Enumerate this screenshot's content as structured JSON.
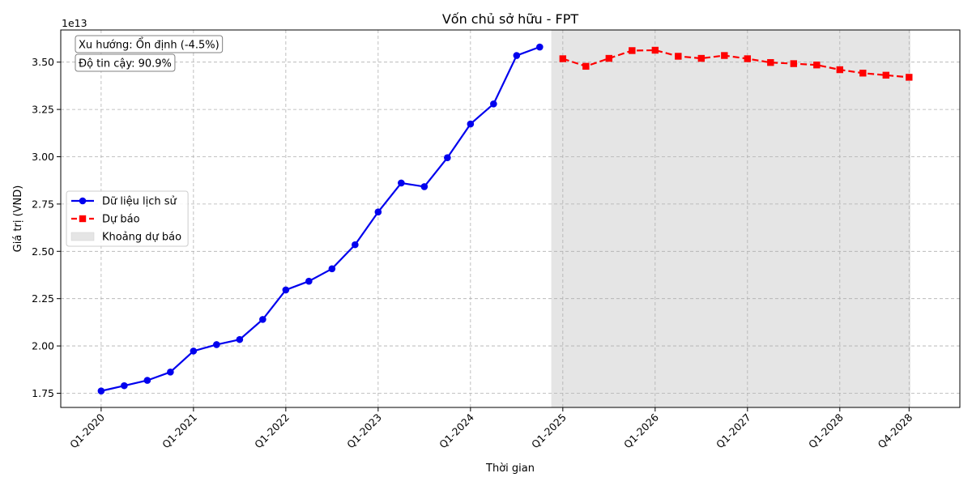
{
  "chart_data": {
    "type": "line",
    "title": "Vốn chủ sở hữu - FPT",
    "xlabel": "Thời gian",
    "ylabel": "Giá trị (VND)",
    "y_offset_label": "1e13",
    "x_tick_labels": [
      "Q1-2020",
      "Q1-2021",
      "Q1-2022",
      "Q1-2023",
      "Q1-2024",
      "Q1-2025",
      "Q1-2026",
      "Q1-2027",
      "Q1-2028",
      "Q4-2028"
    ],
    "y_tick_labels": [
      "1.75",
      "2.00",
      "2.25",
      "2.50",
      "2.75",
      "3.00",
      "3.25",
      "3.50"
    ],
    "y_ticks": [
      1.75,
      2.0,
      2.25,
      2.5,
      2.75,
      3.0,
      3.25,
      3.5
    ],
    "ylim": [
      1.675,
      3.67
    ],
    "grid": true,
    "legend_position": "center-left",
    "series": [
      {
        "name": "Dữ liệu lịch sử",
        "color": "#0000ee",
        "marker": "circle",
        "x": [
          "Q1-2020",
          "Q2-2020",
          "Q3-2020",
          "Q4-2020",
          "Q1-2021",
          "Q2-2021",
          "Q3-2021",
          "Q4-2021",
          "Q1-2022",
          "Q2-2022",
          "Q3-2022",
          "Q4-2022",
          "Q1-2023",
          "Q2-2023",
          "Q3-2023",
          "Q4-2023",
          "Q1-2024",
          "Q2-2024",
          "Q3-2024",
          "Q4-2024"
        ],
        "values": [
          1.762,
          1.79,
          1.818,
          1.862,
          1.973,
          2.007,
          2.034,
          2.14,
          2.296,
          2.342,
          2.408,
          2.535,
          2.708,
          2.861,
          2.842,
          2.995,
          3.173,
          3.279,
          3.535,
          3.58
        ]
      },
      {
        "name": "Dự báo",
        "color": "#ff0000",
        "marker": "square",
        "x": [
          "Q1-2025",
          "Q2-2025",
          "Q3-2025",
          "Q4-2025",
          "Q1-2026",
          "Q2-2026",
          "Q3-2026",
          "Q4-2026",
          "Q1-2027",
          "Q2-2027",
          "Q3-2027",
          "Q4-2027",
          "Q1-2028",
          "Q2-2028",
          "Q3-2028",
          "Q4-2028"
        ],
        "values": [
          3.518,
          3.478,
          3.52,
          3.561,
          3.563,
          3.531,
          3.52,
          3.535,
          3.518,
          3.498,
          3.492,
          3.485,
          3.46,
          3.442,
          3.431,
          3.42
        ]
      }
    ],
    "forecast_region": {
      "name": "Khoảng dự báo",
      "color": "#e5e5e5",
      "start": "Q4-2024",
      "end": "Q4-2028"
    },
    "annotations": [
      "Xu hướng: Ổn định (-4.5%)",
      "Độ tin cậy: 90.9%"
    ]
  }
}
